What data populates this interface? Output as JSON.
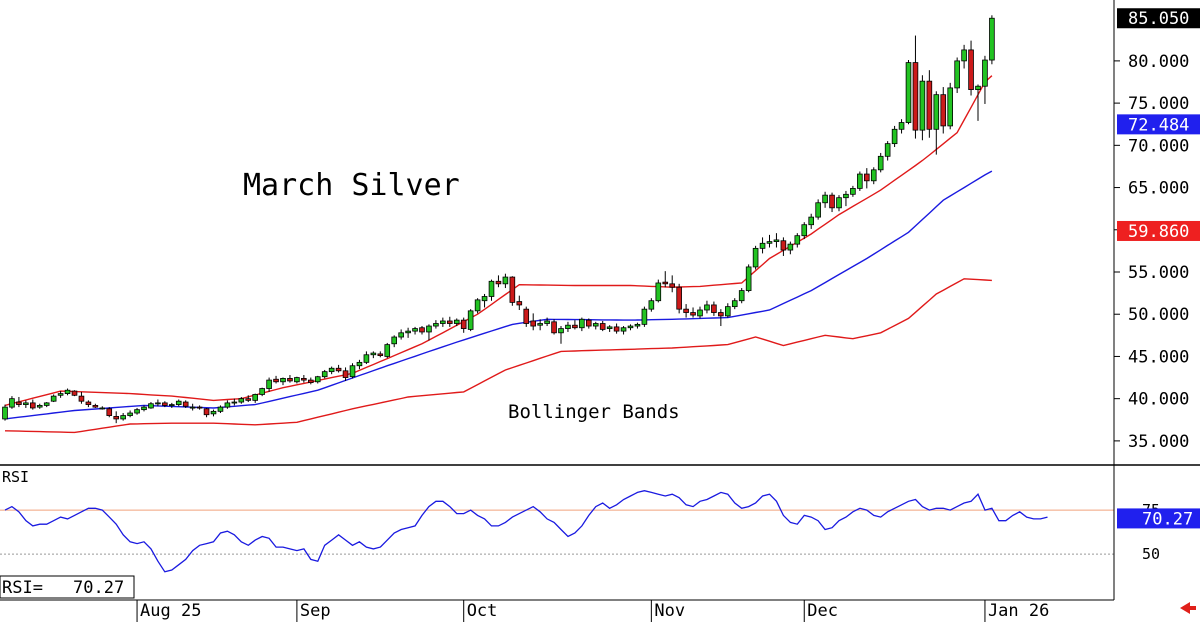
{
  "chart_data": [
    {
      "type": "candlestick",
      "title": "March Silver",
      "annotation": "Bollinger Bands",
      "price_axis": {
        "ticks": [
          "35.000",
          "40.000",
          "45.000",
          "50.000",
          "55.000",
          "60.000",
          "65.000",
          "70.000",
          "75.000",
          "80.000",
          "85.050"
        ],
        "ylim": [
          32.5,
          86.5
        ]
      },
      "markers": [
        {
          "label": "85.050",
          "value": 85.05,
          "color": "#000000"
        },
        {
          "label": "72.484",
          "value": 72.484,
          "color": "#2020ee"
        },
        {
          "label": "59.860",
          "value": 59.86,
          "color": "#ee2020"
        }
      ],
      "x_labels": [
        "Aug 25",
        "Sep",
        "Oct",
        "Nov",
        "Dec",
        "Jan 26"
      ],
      "x_label_index": [
        19,
        42,
        66,
        93,
        115,
        141
      ],
      "candles": [
        [
          37.6,
          39.3,
          37.4,
          39.0
        ],
        [
          39.0,
          40.3,
          38.8,
          40.0
        ],
        [
          39.6,
          40.2,
          39.0,
          39.3
        ],
        [
          39.3,
          39.8,
          38.9,
          39.5
        ],
        [
          39.5,
          39.9,
          38.7,
          38.9
        ],
        [
          39.0,
          39.4,
          38.8,
          39.2
        ],
        [
          39.2,
          39.6,
          39.0,
          39.5
        ],
        [
          39.7,
          40.5,
          39.6,
          40.3
        ],
        [
          40.4,
          40.9,
          40.1,
          40.6
        ],
        [
          40.6,
          41.2,
          40.4,
          41.0
        ],
        [
          40.9,
          41.0,
          40.3,
          40.4
        ],
        [
          40.3,
          40.8,
          39.4,
          39.7
        ],
        [
          39.6,
          39.8,
          39.0,
          39.3
        ],
        [
          39.2,
          39.4,
          38.9,
          39.0
        ],
        [
          38.9,
          39.1,
          38.7,
          38.9
        ],
        [
          38.8,
          39.0,
          37.8,
          38.0
        ],
        [
          37.9,
          38.5,
          37.1,
          37.6
        ],
        [
          37.6,
          38.3,
          37.4,
          38.0
        ],
        [
          38.0,
          38.6,
          37.8,
          38.3
        ],
        [
          38.3,
          38.9,
          38.1,
          38.7
        ],
        [
          38.7,
          39.2,
          38.5,
          39.0
        ],
        [
          38.9,
          39.6,
          38.8,
          39.4
        ],
        [
          39.4,
          39.9,
          39.1,
          39.5
        ],
        [
          39.5,
          39.7,
          39.0,
          39.2
        ],
        [
          39.2,
          39.5,
          38.9,
          39.3
        ],
        [
          39.3,
          39.9,
          39.1,
          39.7
        ],
        [
          39.6,
          39.8,
          38.9,
          39.1
        ],
        [
          39.0,
          39.4,
          38.6,
          39.0
        ],
        [
          39.0,
          39.2,
          38.7,
          38.9
        ],
        [
          38.8,
          38.9,
          37.8,
          38.1
        ],
        [
          38.2,
          38.7,
          37.9,
          38.5
        ],
        [
          38.5,
          39.2,
          38.3,
          39.0
        ],
        [
          39.0,
          39.8,
          38.8,
          39.5
        ],
        [
          39.5,
          40.0,
          39.2,
          39.6
        ],
        [
          39.6,
          40.2,
          39.4,
          40.0
        ],
        [
          40.0,
          40.4,
          39.6,
          39.8
        ],
        [
          39.8,
          40.6,
          39.5,
          40.5
        ],
        [
          40.5,
          41.3,
          40.3,
          41.2
        ],
        [
          41.2,
          42.5,
          40.8,
          42.2
        ],
        [
          42.3,
          42.7,
          41.8,
          42.0
        ],
        [
          42.0,
          42.5,
          41.6,
          42.4
        ],
        [
          42.4,
          42.8,
          41.9,
          42.1
        ],
        [
          42.0,
          42.6,
          41.8,
          42.5
        ],
        [
          42.4,
          42.8,
          41.9,
          42.2
        ],
        [
          42.2,
          42.5,
          41.7,
          41.9
        ],
        [
          42.0,
          42.7,
          41.8,
          42.6
        ],
        [
          42.6,
          43.4,
          42.4,
          43.2
        ],
        [
          43.2,
          43.8,
          42.9,
          43.6
        ],
        [
          43.6,
          44.0,
          43.1,
          43.3
        ],
        [
          43.3,
          43.7,
          42.1,
          42.5
        ],
        [
          42.6,
          44.2,
          42.4,
          43.9
        ],
        [
          43.9,
          44.6,
          43.5,
          44.3
        ],
        [
          44.3,
          45.6,
          44.1,
          45.2
        ],
        [
          45.2,
          45.6,
          44.8,
          45.4
        ],
        [
          45.3,
          45.6,
          44.9,
          45.1
        ],
        [
          45.0,
          46.6,
          44.8,
          46.4
        ],
        [
          46.5,
          47.5,
          46.1,
          47.3
        ],
        [
          47.3,
          48.2,
          47.0,
          47.8
        ],
        [
          47.8,
          48.4,
          47.2,
          48.0
        ],
        [
          48.0,
          48.5,
          47.6,
          48.3
        ],
        [
          48.4,
          48.6,
          47.6,
          47.9
        ],
        [
          47.9,
          48.8,
          46.9,
          48.6
        ],
        [
          48.6,
          49.3,
          48.3,
          48.9
        ],
        [
          48.9,
          49.6,
          48.5,
          49.2
        ],
        [
          49.2,
          49.7,
          48.5,
          48.9
        ],
        [
          48.9,
          49.5,
          48.6,
          49.3
        ],
        [
          49.3,
          49.6,
          47.8,
          48.3
        ],
        [
          48.2,
          50.6,
          48.0,
          50.4
        ],
        [
          50.4,
          51.9,
          50.1,
          51.7
        ],
        [
          51.6,
          52.4,
          50.8,
          52.1
        ],
        [
          52.1,
          54.1,
          51.6,
          53.9
        ],
        [
          53.9,
          54.6,
          53.2,
          53.6
        ],
        [
          53.6,
          54.8,
          53.1,
          54.4
        ],
        [
          54.4,
          54.5,
          51.0,
          51.4
        ],
        [
          51.5,
          52.2,
          50.5,
          51.1
        ],
        [
          50.6,
          50.9,
          48.5,
          48.9
        ],
        [
          49.2,
          50.1,
          48.1,
          48.6
        ],
        [
          48.7,
          49.4,
          48.1,
          48.9
        ],
        [
          48.9,
          49.6,
          48.6,
          49.2
        ],
        [
          49.1,
          49.4,
          47.6,
          47.8
        ],
        [
          47.8,
          48.6,
          46.5,
          48.3
        ],
        [
          48.3,
          49.1,
          47.9,
          48.7
        ],
        [
          48.7,
          49.3,
          48.2,
          48.4
        ],
        [
          48.4,
          49.6,
          48.0,
          49.4
        ],
        [
          49.3,
          49.5,
          48.3,
          48.6
        ],
        [
          48.6,
          49.1,
          48.2,
          48.9
        ],
        [
          48.9,
          49.2,
          48.0,
          48.2
        ],
        [
          48.3,
          48.7,
          47.9,
          48.5
        ],
        [
          48.5,
          48.9,
          47.7,
          48.0
        ],
        [
          48.0,
          48.6,
          47.6,
          48.4
        ],
        [
          48.4,
          48.8,
          48.1,
          48.6
        ],
        [
          48.6,
          49.0,
          48.3,
          48.8
        ],
        [
          48.8,
          50.9,
          48.5,
          50.6
        ],
        [
          50.6,
          51.9,
          50.3,
          51.6
        ],
        [
          51.6,
          54.1,
          51.4,
          53.7
        ],
        [
          53.8,
          55.1,
          53.2,
          53.6
        ],
        [
          53.6,
          54.6,
          52.6,
          53.2
        ],
        [
          53.2,
          53.6,
          50.1,
          50.6
        ],
        [
          50.6,
          51.2,
          49.6,
          50.2
        ],
        [
          50.2,
          50.8,
          49.6,
          49.9
        ],
        [
          49.8,
          50.9,
          49.5,
          50.5
        ],
        [
          50.5,
          51.6,
          50.1,
          51.1
        ],
        [
          51.1,
          51.5,
          49.8,
          50.2
        ],
        [
          50.2,
          50.6,
          48.6,
          49.8
        ],
        [
          49.8,
          51.3,
          49.6,
          50.9
        ],
        [
          50.9,
          51.9,
          50.6,
          51.6
        ],
        [
          51.6,
          53.1,
          51.3,
          52.8
        ],
        [
          52.8,
          55.9,
          52.6,
          55.6
        ],
        [
          55.6,
          58.1,
          55.3,
          57.8
        ],
        [
          57.8,
          59.1,
          57.2,
          58.4
        ],
        [
          58.4,
          59.4,
          57.9,
          58.6
        ],
        [
          58.6,
          59.6,
          57.9,
          58.8
        ],
        [
          58.7,
          59.1,
          56.9,
          57.6
        ],
        [
          57.6,
          58.6,
          57.1,
          58.3
        ],
        [
          58.3,
          59.6,
          57.9,
          59.3
        ],
        [
          59.3,
          60.9,
          58.9,
          60.6
        ],
        [
          60.6,
          61.9,
          60.1,
          61.5
        ],
        [
          61.5,
          63.6,
          61.2,
          63.2
        ],
        [
          63.2,
          64.5,
          62.6,
          64.1
        ],
        [
          64.1,
          64.4,
          62.1,
          62.6
        ],
        [
          62.6,
          64.1,
          62.2,
          63.8
        ],
        [
          63.8,
          64.6,
          62.8,
          64.2
        ],
        [
          64.2,
          65.2,
          63.9,
          64.9
        ],
        [
          64.9,
          66.9,
          64.6,
          66.6
        ],
        [
          66.6,
          67.3,
          64.9,
          65.8
        ],
        [
          65.8,
          67.4,
          65.4,
          67.1
        ],
        [
          67.1,
          69.1,
          66.8,
          68.7
        ],
        [
          68.7,
          70.5,
          68.2,
          70.2
        ],
        [
          70.2,
          72.3,
          69.8,
          71.9
        ],
        [
          71.9,
          73.1,
          71.4,
          72.7
        ],
        [
          72.7,
          80.1,
          72.5,
          79.8
        ],
        [
          79.8,
          83.0,
          70.8,
          71.8
        ],
        [
          71.8,
          78.3,
          70.6,
          77.6
        ],
        [
          77.6,
          78.9,
          70.9,
          71.9
        ],
        [
          71.9,
          76.4,
          68.9,
          76.0
        ],
        [
          76.0,
          76.9,
          71.4,
          72.3
        ],
        [
          72.3,
          77.4,
          71.9,
          76.8
        ],
        [
          76.8,
          80.4,
          76.2,
          80.0
        ],
        [
          80.0,
          81.9,
          79.1,
          81.3
        ],
        [
          81.3,
          82.4,
          75.9,
          76.6
        ],
        [
          76.6,
          77.2,
          72.9,
          77.0
        ],
        [
          77.0,
          80.6,
          74.9,
          80.1
        ],
        [
          80.1,
          85.4,
          79.6,
          85.05
        ]
      ],
      "bollinger": {
        "upper_anchors": [
          [
            0,
            39.2
          ],
          [
            8,
            40.9
          ],
          [
            18,
            40.6
          ],
          [
            24,
            40.3
          ],
          [
            30,
            39.8
          ],
          [
            34,
            40.0
          ],
          [
            40,
            41.3
          ],
          [
            50,
            43.0
          ],
          [
            60,
            46.5
          ],
          [
            68,
            50.0
          ],
          [
            74,
            53.5
          ],
          [
            82,
            53.4
          ],
          [
            90,
            53.4
          ],
          [
            96,
            53.2
          ],
          [
            100,
            53.3
          ],
          [
            106,
            53.7
          ],
          [
            110,
            56.6
          ],
          [
            116,
            59.5
          ],
          [
            120,
            61.8
          ],
          [
            126,
            64.7
          ],
          [
            132,
            68.2
          ],
          [
            137,
            71.5
          ],
          [
            141,
            77.5
          ],
          [
            145,
            80.5
          ],
          [
            148,
            83.5
          ],
          [
            150,
            85.8
          ]
        ],
        "middle_anchors": [
          [
            0,
            37.6
          ],
          [
            10,
            38.6
          ],
          [
            20,
            39.2
          ],
          [
            30,
            38.9
          ],
          [
            36,
            39.3
          ],
          [
            45,
            41.0
          ],
          [
            55,
            43.9
          ],
          [
            65,
            46.7
          ],
          [
            73,
            48.8
          ],
          [
            78,
            49.4
          ],
          [
            90,
            49.3
          ],
          [
            96,
            49.4
          ],
          [
            104,
            49.6
          ],
          [
            110,
            50.5
          ],
          [
            116,
            52.8
          ],
          [
            124,
            56.6
          ],
          [
            130,
            59.7
          ],
          [
            135,
            63.5
          ],
          [
            141,
            66.5
          ],
          [
            145,
            68.3
          ],
          [
            150,
            72.48
          ]
        ],
        "lower_anchors": [
          [
            0,
            36.2
          ],
          [
            10,
            36.0
          ],
          [
            18,
            37.0
          ],
          [
            24,
            37.1
          ],
          [
            30,
            37.1
          ],
          [
            36,
            36.9
          ],
          [
            42,
            37.2
          ],
          [
            50,
            38.8
          ],
          [
            58,
            40.2
          ],
          [
            66,
            40.8
          ],
          [
            72,
            43.4
          ],
          [
            80,
            45.6
          ],
          [
            88,
            45.8
          ],
          [
            96,
            46.0
          ],
          [
            104,
            46.4
          ],
          [
            108,
            47.3
          ],
          [
            112,
            46.3
          ],
          [
            118,
            47.5
          ],
          [
            122,
            47.1
          ],
          [
            126,
            47.8
          ],
          [
            130,
            49.5
          ],
          [
            134,
            52.4
          ],
          [
            138,
            54.2
          ],
          [
            142,
            54.0
          ],
          [
            146,
            56.6
          ],
          [
            148,
            58.3
          ],
          [
            150,
            59.86
          ]
        ]
      }
    },
    {
      "type": "line",
      "title": "RSI",
      "readout_label": "RSI=",
      "readout_value": "70.27",
      "marker": {
        "label": "70.27",
        "value": 70.27
      },
      "tick_labels": [
        "75",
        "50"
      ],
      "ylim": [
        24,
        100
      ],
      "reference_line": 75,
      "midline": 50,
      "values": [
        75,
        77,
        74,
        69,
        66,
        67,
        67,
        69,
        71,
        70,
        72,
        74,
        76,
        76,
        75,
        71,
        67,
        61,
        57,
        56,
        57,
        53,
        46,
        40,
        41,
        44,
        47,
        52,
        55,
        56,
        57,
        62,
        63,
        61,
        57,
        55,
        58,
        60,
        59,
        54,
        54,
        53,
        52,
        53,
        47,
        46,
        55,
        58,
        61,
        58,
        55,
        57,
        54,
        53,
        54,
        58,
        62,
        64,
        65,
        66,
        72,
        77,
        80,
        80,
        77,
        73,
        73,
        75,
        72,
        70,
        66,
        66,
        68,
        71,
        73,
        75,
        77,
        74,
        70,
        68,
        64,
        60,
        62,
        66,
        72,
        77,
        79,
        76,
        78,
        81,
        83,
        85,
        86,
        85,
        84,
        83,
        84,
        82,
        78,
        77,
        80,
        81,
        83,
        85,
        84,
        79,
        76,
        77,
        79,
        83,
        84,
        80,
        72,
        68,
        67,
        72,
        71,
        69,
        64,
        65,
        69,
        71,
        74,
        76,
        75,
        72,
        71,
        74,
        76,
        78,
        80,
        81,
        77,
        75,
        76,
        76,
        75,
        77,
        79,
        80,
        84,
        75,
        76,
        69,
        69,
        72,
        74,
        71,
        70,
        70,
        71
      ]
    }
  ]
}
